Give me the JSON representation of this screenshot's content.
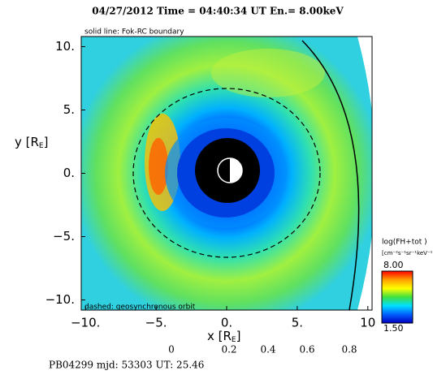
{
  "chart_data": {
    "type": "heatmap",
    "title": "04/27/2012 Time = 04:40:34 UT En.= 8.00keV",
    "subtitle": "solid line: Fok-RC boundary",
    "annotation": "dashed: geosynchronous orbit",
    "x_label": {
      "main": "x [R",
      "sub": "E",
      "end": "]"
    },
    "y_label": {
      "main": "y [R",
      "sub": "E",
      "end": "]"
    },
    "xlim": [
      -10.3,
      10.3
    ],
    "ylim": [
      -10.8,
      10.8
    ],
    "xticks": [
      {
        "value": -10,
        "label": "−10."
      },
      {
        "value": -5,
        "label": "−5."
      },
      {
        "value": 0,
        "label": "0."
      },
      {
        "value": 5,
        "label": "5."
      },
      {
        "value": 10,
        "label": "10"
      }
    ],
    "yticks": [
      {
        "value": 10,
        "label": "10."
      },
      {
        "value": 5,
        "label": "5."
      },
      {
        "value": 0,
        "label": "0."
      },
      {
        "value": -5,
        "label": "−5."
      },
      {
        "value": -10,
        "label": "−10."
      }
    ],
    "colorbar": {
      "title": "log(FH+tot )",
      "units": "[cm⁻²s⁻¹sr⁻¹keV⁻¹]",
      "lim": [
        1.5,
        8
      ],
      "ticks": [
        {
          "value": 8,
          "label": "8.00"
        },
        {
          "value": 1.5,
          "label": "1.50"
        }
      ],
      "colors": [
        "#ff0000",
        "#ffa000",
        "#ffff00",
        "#40e040",
        "#00e0ff",
        "#0060ff",
        "#0000c0"
      ]
    },
    "strip_ticks": [
      0,
      0.2,
      0.4,
      0.6,
      0.8
    ],
    "footer": "PB04299  mjd: 53303  UT:  25.46"
  }
}
